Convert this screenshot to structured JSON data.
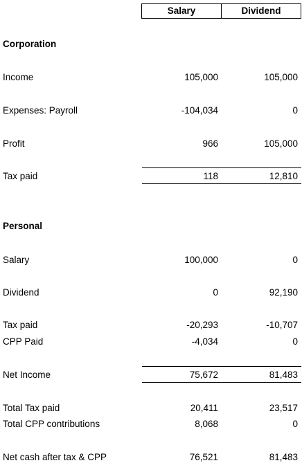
{
  "columns": {
    "salary": "Salary",
    "dividend": "Dividend"
  },
  "corporation": {
    "heading": "Corporation",
    "income": {
      "label": "Income",
      "salary": "105,000",
      "dividend": "105,000"
    },
    "expenses": {
      "label": "Expenses: Payroll",
      "salary": "-104,034",
      "dividend": "0"
    },
    "profit": {
      "label": "Profit",
      "salary": "966",
      "dividend": "105,000"
    },
    "tax_paid": {
      "label": "Tax paid",
      "salary": "118",
      "dividend": "12,810"
    }
  },
  "personal": {
    "heading": "Personal",
    "salary": {
      "label": "Salary",
      "salary": "100,000",
      "dividend": "0"
    },
    "dividend": {
      "label": "Dividend",
      "salary": "0",
      "dividend": "92,190"
    },
    "tax_paid": {
      "label": "Tax paid",
      "salary": "-20,293",
      "dividend": "-10,707"
    },
    "cpp_paid": {
      "label": "CPP Paid",
      "salary": "-4,034",
      "dividend": "0"
    },
    "net_income": {
      "label": "Net Income",
      "salary": "75,672",
      "dividend": "81,483"
    },
    "total_tax": {
      "label": "Total Tax paid",
      "salary": "20,411",
      "dividend": "23,517"
    },
    "total_cpp": {
      "label": "Total CPP contributions",
      "salary": "8,068",
      "dividend": "0"
    },
    "net_cash": {
      "label": "Net cash after tax & CPP",
      "salary": "76,521",
      "dividend": "81,483"
    }
  }
}
